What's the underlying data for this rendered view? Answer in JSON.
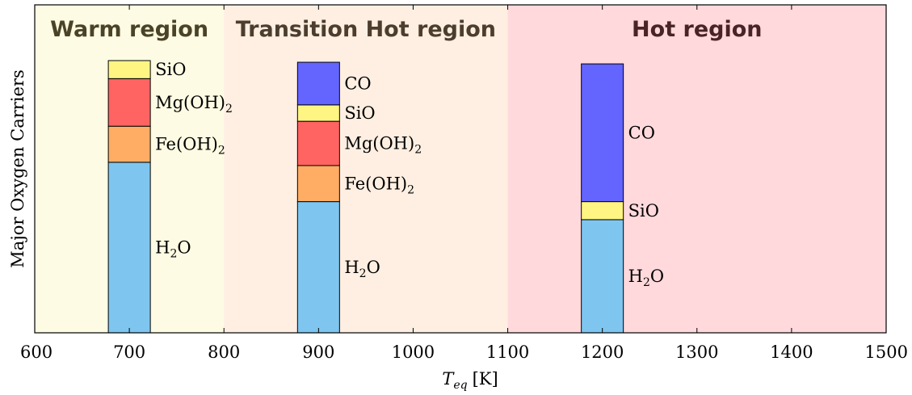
{
  "chart_data": {
    "type": "bar",
    "stacked": true,
    "title": "",
    "xlabel_main": "T",
    "xlabel_sub": "eq",
    "xlabel_unit": "[K]",
    "ylabel": "Major Oxygen Carriers",
    "xlim": [
      600,
      1500
    ],
    "ylim": [
      0,
      1
    ],
    "xticks": [
      "600",
      "700",
      "800",
      "900",
      "1000",
      "1100",
      "1200",
      "1300",
      "1400",
      "1500"
    ],
    "grid": false,
    "regions": [
      {
        "label": "Warm region",
        "x_from": 600,
        "x_to": 800,
        "fill": "#fdfbe3",
        "label_color": "#4a4328"
      },
      {
        "label": "Transition Hot region",
        "x_from": 800,
        "x_to": 1100,
        "fill": "#feefe2",
        "label_color": "#4d3d2e"
      },
      {
        "label": "Hot region",
        "x_from": 1100,
        "x_to": 1500,
        "fill": "#ffd9dc",
        "label_color": "#4a2327"
      }
    ],
    "bars": [
      {
        "x": 700,
        "segments": [
          {
            "species": "H2O",
            "base": "H",
            "sub": "2",
            "tail": "O",
            "value": 0.52,
            "color": "#7ec6f0"
          },
          {
            "species": "Fe(OH)2",
            "base": "Fe(OH)",
            "sub": "2",
            "tail": "",
            "value": 0.11,
            "color": "#ffad65"
          },
          {
            "species": "Mg(OH)2",
            "base": "Mg(OH)",
            "sub": "2",
            "tail": "",
            "value": 0.145,
            "color": "#ff6462"
          },
          {
            "species": "SiO",
            "base": "SiO",
            "sub": "",
            "tail": "",
            "value": 0.055,
            "color": "#fff583"
          }
        ]
      },
      {
        "x": 900,
        "segments": [
          {
            "species": "H2O",
            "base": "H",
            "sub": "2",
            "tail": "O",
            "value": 0.4,
            "color": "#7ec6f0"
          },
          {
            "species": "Fe(OH)2",
            "base": "Fe(OH)",
            "sub": "2",
            "tail": "",
            "value": 0.11,
            "color": "#ffad65"
          },
          {
            "species": "Mg(OH)2",
            "base": "Mg(OH)",
            "sub": "2",
            "tail": "",
            "value": 0.135,
            "color": "#ff6462"
          },
          {
            "species": "SiO",
            "base": "SiO",
            "sub": "",
            "tail": "",
            "value": 0.05,
            "color": "#fff583"
          },
          {
            "species": "CO",
            "base": "CO",
            "sub": "",
            "tail": "",
            "value": 0.13,
            "color": "#6464ff"
          }
        ]
      },
      {
        "x": 1200,
        "segments": [
          {
            "species": "H2O",
            "base": "H",
            "sub": "2",
            "tail": "O",
            "value": 0.345,
            "color": "#7ec6f0"
          },
          {
            "species": "SiO",
            "base": "SiO",
            "sub": "",
            "tail": "",
            "value": 0.055,
            "color": "#fff583"
          },
          {
            "species": "CO",
            "base": "CO",
            "sub": "",
            "tail": "",
            "value": 0.42,
            "color": "#6464ff"
          }
        ]
      }
    ],
    "bar_width": 52
  }
}
